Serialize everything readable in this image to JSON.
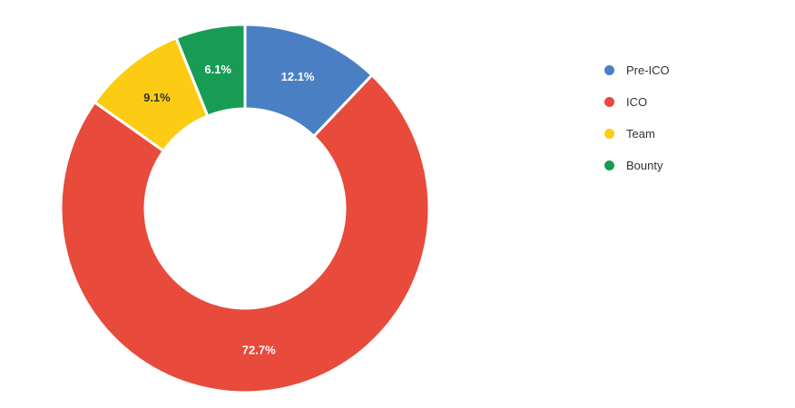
{
  "chart_data": {
    "type": "pie",
    "donut": true,
    "categories": [
      "Pre-ICO",
      "ICO",
      "Team",
      "Bounty"
    ],
    "values": [
      12.1,
      72.7,
      9.1,
      6.1
    ],
    "labels": [
      "12.1%",
      "72.7%",
      "9.1%",
      "6.1%"
    ],
    "colors": [
      "#4a7fc4",
      "#e84a3b",
      "#fccc14",
      "#189c55"
    ],
    "label_colors": [
      "#ffffff",
      "#ffffff",
      "#333333",
      "#ffffff"
    ],
    "legend_placement": "right"
  }
}
